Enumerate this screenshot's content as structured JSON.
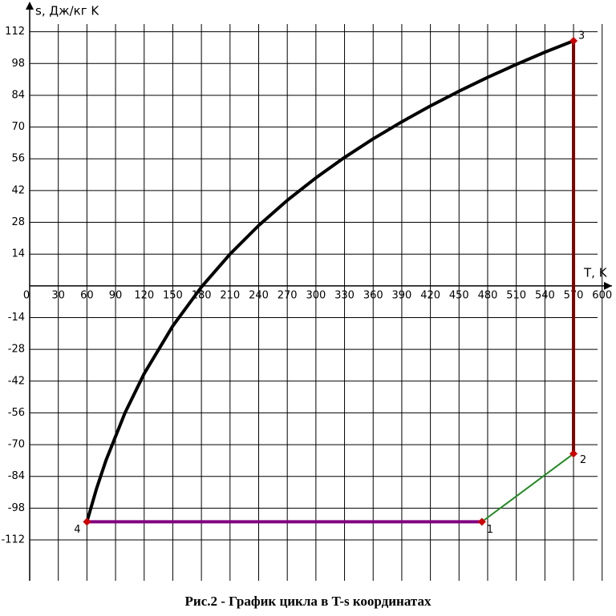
{
  "chart_data": {
    "type": "line",
    "title": "Рис.2 - График цикла в T-s координатах",
    "x_label": "T, K",
    "y_label": "s, Дж/кг K",
    "xlim": [
      0,
      612
    ],
    "ylim": [
      -130,
      126
    ],
    "xticks": [
      0,
      30,
      60,
      90,
      120,
      150,
      180,
      210,
      240,
      270,
      300,
      330,
      360,
      390,
      420,
      450,
      480,
      510,
      540,
      570,
      600
    ],
    "yticks": [
      112,
      98,
      84,
      70,
      56,
      42,
      28,
      14,
      -14,
      -28,
      -42,
      -56,
      -70,
      -84,
      -98,
      -112
    ],
    "grid": true,
    "series": [
      {
        "color": "#000000",
        "width": 4,
        "x": [
          60,
          70,
          80,
          100,
          120,
          150,
          180,
          210,
          240,
          270,
          300,
          330,
          360,
          390,
          420,
          450,
          480,
          510,
          540,
          570
        ],
        "values": [
          -104,
          -89.5,
          -76.9,
          -55.9,
          -38.7,
          -17.7,
          -0.5,
          14,
          26.6,
          37.7,
          47.6,
          56.6,
          64.8,
          72.3,
          79.3,
          85.8,
          91.9,
          97.6,
          103,
          108
        ]
      },
      {
        "color": "#800000",
        "width": 4,
        "x": [
          570,
          570
        ],
        "values": [
          108,
          -74
        ]
      },
      {
        "color": "#228b22",
        "width": 2,
        "x": [
          570,
          474
        ],
        "values": [
          -74,
          -104
        ]
      },
      {
        "color": "#800080",
        "width": 4,
        "x": [
          474,
          60
        ],
        "values": [
          -104,
          -104
        ]
      }
    ],
    "points": [
      {
        "label": "1",
        "x": 474,
        "y": -104
      },
      {
        "label": "2",
        "x": 570,
        "y": -74
      },
      {
        "label": "3",
        "x": 570,
        "y": 108
      },
      {
        "label": "4",
        "x": 60,
        "y": -104
      }
    ],
    "marker_color": "#cc0000"
  }
}
